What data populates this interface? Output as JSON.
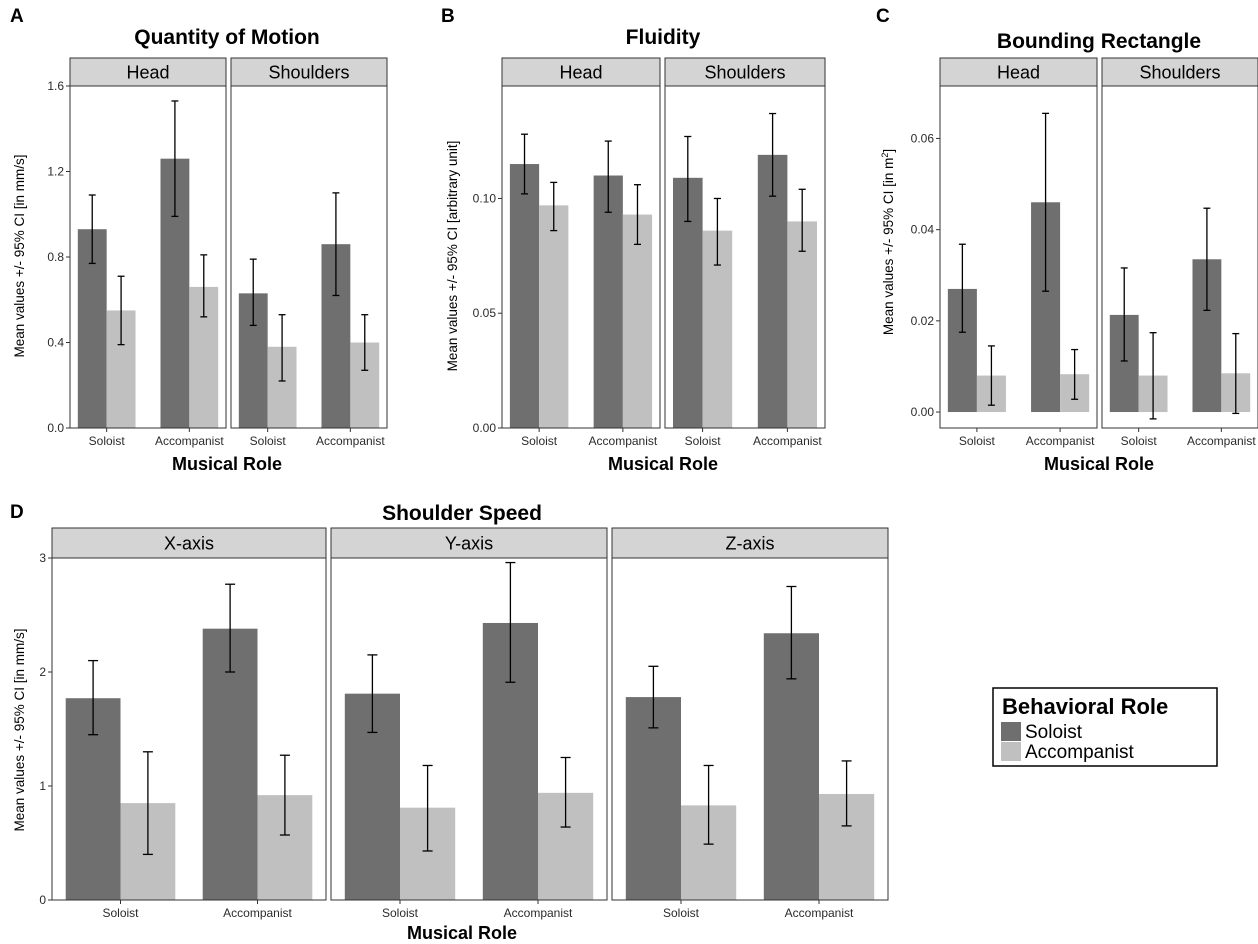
{
  "colors": {
    "soloist": "#6f6f6f",
    "accompanist": "#c0c0c0",
    "strip": "#d4d4d4"
  },
  "legend": {
    "title": "Behavioral Role",
    "items": [
      {
        "label": "Soloist",
        "color": "#6f6f6f"
      },
      {
        "label": "Accompanist",
        "color": "#c0c0c0"
      }
    ]
  },
  "chart_data": [
    {
      "panel": "A",
      "type": "bar",
      "title": "Quantity of Motion",
      "xlabel": "Musical Role",
      "ylabel": "Mean values +/- 95% CI [in mm/s]",
      "ylim": [
        0,
        1.6
      ],
      "yticks": [
        0,
        0.4,
        0.8,
        1.2,
        1.6
      ],
      "ytick_labels": [
        "0.0",
        "0.4",
        "0.8",
        "1.2",
        "1.6"
      ],
      "categories": [
        "Soloist",
        "Accompanist"
      ],
      "facets": [
        {
          "name": "Head",
          "series": [
            {
              "name": "Soloist",
              "values": [
                0.93,
                1.26
              ],
              "ci_low": [
                0.77,
                0.99
              ],
              "ci_high": [
                1.09,
                1.53
              ]
            },
            {
              "name": "Accompanist",
              "values": [
                0.55,
                0.66
              ],
              "ci_low": [
                0.39,
                0.52
              ],
              "ci_high": [
                0.71,
                0.81
              ]
            }
          ]
        },
        {
          "name": "Shoulders",
          "series": [
            {
              "name": "Soloist",
              "values": [
                0.63,
                0.86
              ],
              "ci_low": [
                0.48,
                0.62
              ],
              "ci_high": [
                0.79,
                1.1
              ]
            },
            {
              "name": "Accompanist",
              "values": [
                0.38,
                0.4
              ],
              "ci_low": [
                0.22,
                0.27
              ],
              "ci_high": [
                0.53,
                0.53
              ]
            }
          ]
        }
      ]
    },
    {
      "panel": "B",
      "type": "bar",
      "title": "Fluidity",
      "xlabel": "Musical Role",
      "ylabel": "Mean values +/- 95% CI [arbitrary unit]",
      "ylim": [
        0,
        0.149
      ],
      "yticks": [
        0,
        0.05,
        0.1
      ],
      "ytick_labels": [
        "0.00",
        "0.05",
        "0.10"
      ],
      "categories": [
        "Soloist",
        "Accompanist"
      ],
      "facets": [
        {
          "name": "Head",
          "series": [
            {
              "name": "Soloist",
              "values": [
                0.115,
                0.11
              ],
              "ci_low": [
                0.102,
                0.094
              ],
              "ci_high": [
                0.128,
                0.125
              ]
            },
            {
              "name": "Accompanist",
              "values": [
                0.097,
                0.093
              ],
              "ci_low": [
                0.086,
                0.08
              ],
              "ci_high": [
                0.107,
                0.106
              ]
            }
          ]
        },
        {
          "name": "Shoulders",
          "series": [
            {
              "name": "Soloist",
              "values": [
                0.109,
                0.119
              ],
              "ci_low": [
                0.09,
                0.101
              ],
              "ci_high": [
                0.127,
                0.137
              ]
            },
            {
              "name": "Accompanist",
              "values": [
                0.086,
                0.09
              ],
              "ci_low": [
                0.071,
                0.077
              ],
              "ci_high": [
                0.1,
                0.104
              ]
            }
          ]
        }
      ]
    },
    {
      "panel": "C",
      "type": "bar",
      "title": "Bounding Rectangle",
      "xlabel": "Musical Role",
      "ylabel": "Mean values +/- 95% CI [in m",
      "ylabel_superscript": "2",
      "ylabel_suffix": "]",
      "ylim": [
        -0.0035,
        0.0715
      ],
      "yticks": [
        0,
        0.02,
        0.04,
        0.06
      ],
      "ytick_labels": [
        "0.00",
        "0.02",
        "0.04",
        "0.06"
      ],
      "categories": [
        "Soloist",
        "Accompanist"
      ],
      "facets": [
        {
          "name": "Head",
          "series": [
            {
              "name": "Soloist",
              "values": [
                0.027,
                0.046
              ],
              "ci_low": [
                0.0175,
                0.0265
              ],
              "ci_high": [
                0.0368,
                0.0655
              ]
            },
            {
              "name": "Accompanist",
              "values": [
                0.008,
                0.0083
              ],
              "ci_low": [
                0.0015,
                0.0028
              ],
              "ci_high": [
                0.0145,
                0.0137
              ]
            }
          ]
        },
        {
          "name": "Shoulders",
          "series": [
            {
              "name": "Soloist",
              "values": [
                0.0213,
                0.0335
              ],
              "ci_low": [
                0.0112,
                0.0223
              ],
              "ci_high": [
                0.0316,
                0.0447
              ]
            },
            {
              "name": "Accompanist",
              "values": [
                0.008,
                0.0085
              ],
              "ci_low": [
                -0.0015,
                -0.0003
              ],
              "ci_high": [
                0.0174,
                0.0172
              ]
            }
          ]
        }
      ]
    },
    {
      "panel": "D",
      "type": "bar",
      "title": "Shoulder Speed",
      "xlabel": "Musical Role",
      "ylabel": "Mean values +/- 95% CI [in mm/s]",
      "ylim": [
        0,
        3.0
      ],
      "yticks": [
        0,
        1,
        2,
        3
      ],
      "ytick_labels": [
        "0",
        "1",
        "2",
        "3"
      ],
      "categories": [
        "Soloist",
        "Accompanist"
      ],
      "facets": [
        {
          "name": "X-axis",
          "series": [
            {
              "name": "Soloist",
              "values": [
                1.77,
                2.38
              ],
              "ci_low": [
                1.45,
                2.0
              ],
              "ci_high": [
                2.1,
                2.77
              ]
            },
            {
              "name": "Accompanist",
              "values": [
                0.85,
                0.92
              ],
              "ci_low": [
                0.4,
                0.57
              ],
              "ci_high": [
                1.3,
                1.27
              ]
            }
          ]
        },
        {
          "name": "Y-axis",
          "series": [
            {
              "name": "Soloist",
              "values": [
                1.81,
                2.43
              ],
              "ci_low": [
                1.47,
                1.91
              ],
              "ci_high": [
                2.15,
                2.96
              ]
            },
            {
              "name": "Accompanist",
              "values": [
                0.81,
                0.94
              ],
              "ci_low": [
                0.43,
                0.64
              ],
              "ci_high": [
                1.18,
                1.25
              ]
            }
          ]
        },
        {
          "name": "Z-axis",
          "series": [
            {
              "name": "Soloist",
              "values": [
                1.78,
                2.34
              ],
              "ci_low": [
                1.51,
                1.94
              ],
              "ci_high": [
                2.05,
                2.75
              ]
            },
            {
              "name": "Accompanist",
              "values": [
                0.83,
                0.93
              ],
              "ci_low": [
                0.49,
                0.65
              ],
              "ci_high": [
                1.18,
                1.22
              ]
            }
          ]
        }
      ]
    }
  ]
}
